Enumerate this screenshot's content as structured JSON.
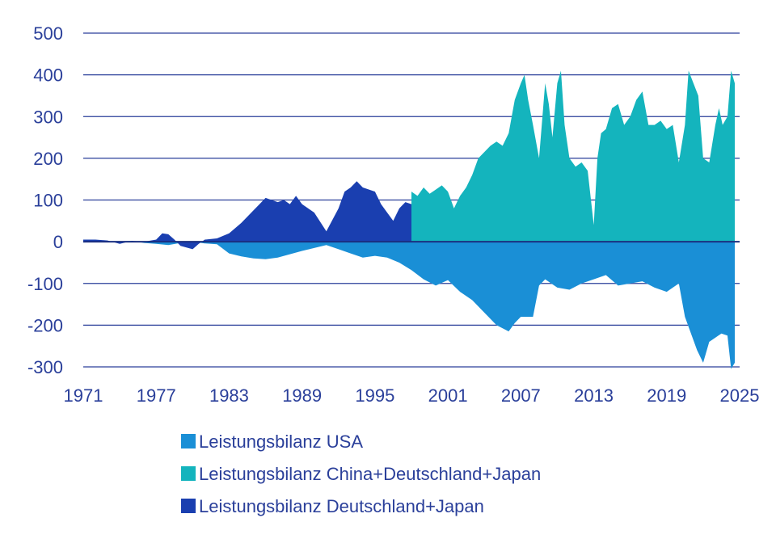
{
  "chart_data": {
    "type": "area",
    "title": "",
    "xlabel": "",
    "ylabel": "",
    "xlim": [
      1971,
      2025
    ],
    "ylim": [
      -300,
      500
    ],
    "grid": true,
    "legend_position": "bottom-center",
    "x_ticks": [
      "1971",
      "1977",
      "1983",
      "1989",
      "1995",
      "2001",
      "2007",
      "2013",
      "2019",
      "2025"
    ],
    "y_ticks": [
      "500",
      "400",
      "300",
      "200",
      "100",
      "0",
      "-100",
      "-200",
      "-300"
    ],
    "y_tick_values": [
      500,
      400,
      300,
      200,
      100,
      0,
      -100,
      -200,
      -300
    ],
    "series": [
      {
        "name": "Leistungsbilanz USA",
        "color": "#1a8fd6",
        "x": [
          1971.0,
          1973.0,
          1975.0,
          1976.0,
          1977.0,
          1978.0,
          1979.0,
          1980.0,
          1981.0,
          1982.0,
          1983.0,
          1984.0,
          1985.0,
          1986.0,
          1987.0,
          1988.0,
          1989.0,
          1990.0,
          1991.0,
          1992.0,
          1993.0,
          1994.0,
          1995.0,
          1996.0,
          1997.0,
          1998.0,
          1999.0,
          2000.0,
          2001.0,
          2002.0,
          2003.0,
          2004.0,
          2005.0,
          2006.0,
          2006.5,
          2007.0,
          2008.0,
          2008.5,
          2009.0,
          2010.0,
          2011.0,
          2012.0,
          2013.0,
          2014.0,
          2015.0,
          2016.0,
          2017.0,
          2018.0,
          2019.0,
          2020.0,
          2020.5,
          2021.0,
          2021.5,
          2022.0,
          2022.5,
          2023.0,
          2023.5,
          2024.0,
          2024.3,
          2024.6
        ],
        "values": [
          -2,
          0,
          2,
          -3,
          -5,
          -8,
          -3,
          0,
          -4,
          -6,
          -28,
          -35,
          -40,
          -42,
          -38,
          -30,
          -22,
          -15,
          -8,
          -18,
          -28,
          -38,
          -34,
          -38,
          -50,
          -68,
          -90,
          -105,
          -92,
          -120,
          -140,
          -170,
          -200,
          -215,
          -195,
          -180,
          -180,
          -105,
          -90,
          -110,
          -115,
          -100,
          -90,
          -80,
          -105,
          -100,
          -95,
          -110,
          -120,
          -100,
          -180,
          -220,
          -260,
          -290,
          -240,
          -230,
          -220,
          -225,
          -305,
          -290
        ]
      },
      {
        "name": "Leistungsbilanz China+Deutschland+Japan",
        "color": "#14b4bd",
        "x": [
          1998.0,
          1998.5,
          1999.0,
          1999.5,
          2000.0,
          2000.5,
          2001.0,
          2001.5,
          2002.0,
          2002.5,
          2003.0,
          2003.5,
          2004.0,
          2004.5,
          2005.0,
          2005.5,
          2006.0,
          2006.5,
          2007.0,
          2007.3,
          2007.6,
          2008.0,
          2008.5,
          2009.0,
          2009.3,
          2009.6,
          2010.0,
          2010.3,
          2010.6,
          2011.0,
          2011.5,
          2012.0,
          2012.5,
          2013.0,
          2013.3,
          2013.6,
          2014.0,
          2014.5,
          2015.0,
          2015.5,
          2016.0,
          2016.5,
          2017.0,
          2017.5,
          2018.0,
          2018.5,
          2019.0,
          2019.5,
          2020.0,
          2020.5,
          2020.8,
          2021.2,
          2021.6,
          2022.0,
          2022.5,
          2023.0,
          2023.3,
          2023.6,
          2024.0,
          2024.3,
          2024.6
        ],
        "values": [
          120,
          110,
          130,
          115,
          125,
          135,
          120,
          80,
          110,
          130,
          160,
          200,
          215,
          230,
          240,
          230,
          260,
          340,
          380,
          400,
          340,
          280,
          200,
          380,
          330,
          250,
          380,
          410,
          280,
          200,
          180,
          190,
          170,
          40,
          200,
          260,
          270,
          320,
          330,
          280,
          300,
          340,
          360,
          280,
          280,
          290,
          270,
          280,
          190,
          280,
          410,
          380,
          350,
          200,
          190,
          280,
          320,
          280,
          300,
          410,
          380
        ]
      },
      {
        "name": "Leistungsbilanz Deutschland+Japan",
        "color": "#1a3fb0",
        "x": [
          1971.0,
          1972.0,
          1973.0,
          1974.0,
          1975.0,
          1976.0,
          1977.0,
          1977.5,
          1978.0,
          1978.5,
          1979.0,
          1980.0,
          1980.5,
          1981.0,
          1982.0,
          1983.0,
          1984.0,
          1985.0,
          1986.0,
          1987.0,
          1987.5,
          1988.0,
          1988.5,
          1989.0,
          1990.0,
          1991.0,
          1992.0,
          1992.5,
          1993.0,
          1993.5,
          1994.0,
          1995.0,
          1995.5,
          1996.0,
          1996.5,
          1997.0,
          1997.5,
          1998.0
        ],
        "values": [
          5,
          5,
          3,
          -5,
          2,
          0,
          5,
          20,
          18,
          5,
          -10,
          -18,
          -5,
          5,
          8,
          20,
          45,
          75,
          105,
          95,
          100,
          90,
          110,
          90,
          70,
          25,
          80,
          120,
          130,
          145,
          130,
          120,
          90,
          70,
          50,
          80,
          95,
          90
        ]
      }
    ]
  }
}
